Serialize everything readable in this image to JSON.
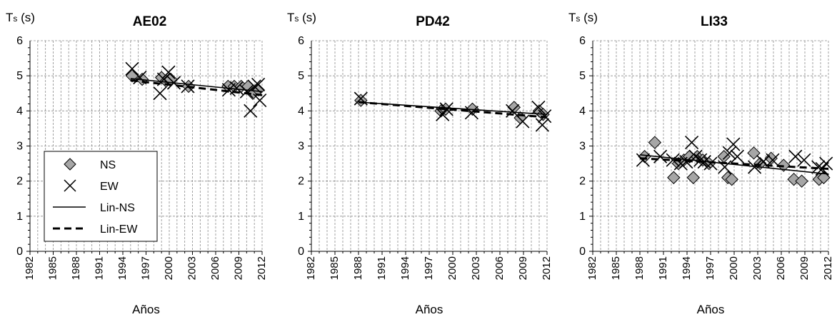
{
  "chart_data": [
    {
      "type": "scatter",
      "title": "AE02",
      "ylabel_main": "T",
      "ylabel_sub": "s",
      "ylabel_unit": " (s)",
      "xlabel": "Años",
      "xlim": [
        1982,
        2012
      ],
      "ylim": [
        0,
        6
      ],
      "x_ticks": [
        "1982",
        "1985",
        "1988",
        "1991",
        "1994",
        "1997",
        "2000",
        "2003",
        "2006",
        "2009",
        "2012"
      ],
      "y_ticks": [
        "0",
        "1",
        "2",
        "3",
        "4",
        "5",
        "6"
      ],
      "grid": true,
      "legend": {
        "placement": "bottom-left",
        "entries": [
          {
            "label": "NS",
            "marker": "diamond"
          },
          {
            "label": "EW",
            "marker": "x"
          },
          {
            "label": "Lin-NS",
            "marker": "solid-line"
          },
          {
            "label": "Lin-EW",
            "marker": "dashed-line"
          }
        ]
      },
      "series": [
        {
          "name": "NS",
          "marker": "diamond",
          "x": [
            1995.2,
            1996.5,
            1999.0,
            1999.6,
            2000.2,
            2002.5,
            2007.6,
            2008.4,
            2009.3,
            2010.2,
            2010.8,
            2011.5
          ],
          "y": [
            5.0,
            4.9,
            4.95,
            4.85,
            4.9,
            4.7,
            4.7,
            4.7,
            4.7,
            4.7,
            4.5,
            4.6
          ]
        },
        {
          "name": "EW",
          "marker": "x",
          "x": [
            1995.2,
            1996.2,
            1998.8,
            1999.3,
            1999.9,
            2000.6,
            2002.4,
            2007.7,
            2008.7,
            2010.0,
            2010.5,
            2011.0,
            2011.5,
            2011.7
          ],
          "y": [
            5.2,
            4.95,
            4.5,
            4.9,
            5.1,
            4.8,
            4.7,
            4.6,
            4.65,
            4.55,
            4.0,
            4.7,
            4.75,
            4.3
          ]
        },
        {
          "name": "Lin-NS",
          "type": "line",
          "style": "solid",
          "x": [
            1995,
            2012
          ],
          "y": [
            4.92,
            4.55
          ]
        },
        {
          "name": "Lin-EW",
          "type": "line",
          "style": "dashed",
          "x": [
            1995,
            2012
          ],
          "y": [
            4.87,
            4.45
          ]
        }
      ]
    },
    {
      "type": "scatter",
      "title": "PD42",
      "ylabel_main": "T",
      "ylabel_sub": "s",
      "ylabel_unit": " (s)",
      "xlabel": "Años",
      "xlim": [
        1982,
        2012
      ],
      "ylim": [
        0,
        6
      ],
      "x_ticks": [
        "1982",
        "1985",
        "1988",
        "1991",
        "1994",
        "1997",
        "2000",
        "2003",
        "2006",
        "2009",
        "2012"
      ],
      "y_ticks": [
        "0",
        "1",
        "2",
        "3",
        "4",
        "5",
        "6"
      ],
      "grid": true,
      "series": [
        {
          "name": "NS",
          "marker": "diamond",
          "x": [
            1988.3,
            1998.5,
            1999.1,
            2002.5,
            2007.8,
            2008.6,
            2011.0,
            2011.5
          ],
          "y": [
            4.3,
            4.0,
            4.05,
            4.05,
            4.1,
            3.8,
            4.0,
            3.9
          ]
        },
        {
          "name": "EW",
          "marker": "x",
          "x": [
            1988.3,
            1998.7,
            1999.2,
            2002.4,
            2007.6,
            2008.9,
            2010.9,
            2011.4,
            2011.7
          ],
          "y": [
            4.35,
            3.9,
            4.05,
            3.95,
            4.0,
            3.7,
            4.1,
            3.6,
            3.85
          ]
        },
        {
          "name": "Lin-NS",
          "type": "line",
          "style": "solid",
          "x": [
            1988,
            2012
          ],
          "y": [
            4.25,
            3.9
          ]
        },
        {
          "name": "Lin-EW",
          "type": "line",
          "style": "dashed",
          "x": [
            1988,
            2012
          ],
          "y": [
            4.25,
            3.82
          ]
        }
      ]
    },
    {
      "type": "scatter",
      "title": "LI33",
      "ylabel_main": "T",
      "ylabel_sub": "s",
      "ylabel_unit": " (s)",
      "xlabel": "Años",
      "xlim": [
        1982,
        2012
      ],
      "ylim": [
        0,
        6
      ],
      "x_ticks": [
        "1982",
        "1985",
        "1988",
        "1991",
        "1994",
        "1997",
        "2000",
        "2003",
        "2006",
        "2009",
        "2012"
      ],
      "y_ticks": [
        "0",
        "1",
        "2",
        "3",
        "4",
        "5",
        "6"
      ],
      "grid": true,
      "series": [
        {
          "name": "NS",
          "marker": "diamond",
          "x": [
            1988.6,
            1989.9,
            1992.3,
            1992.9,
            1993.6,
            1994.3,
            1994.8,
            1995.3,
            1996.0,
            1996.8,
            1998.7,
            1999.2,
            1999.7,
            2002.5,
            2003.3,
            2004.7,
            2006.3,
            2007.6,
            2008.6,
            2010.8,
            2011.4
          ],
          "y": [
            2.7,
            3.1,
            2.1,
            2.5,
            2.6,
            2.7,
            2.1,
            2.7,
            2.6,
            2.5,
            2.7,
            2.1,
            2.05,
            2.8,
            2.5,
            2.65,
            2.45,
            2.05,
            2.0,
            2.05,
            2.1
          ]
        },
        {
          "name": "EW",
          "marker": "x",
          "x": [
            1988.4,
            1990.6,
            1992.2,
            1993.2,
            1993.9,
            1994.6,
            1995.1,
            1995.7,
            1996.2,
            1997.0,
            1998.8,
            1999.4,
            1999.9,
            2000.4,
            2002.6,
            2003.7,
            2004.9,
            2007.8,
            2008.9,
            2010.7,
            2011.2,
            2011.7
          ],
          "y": [
            2.6,
            2.7,
            2.6,
            2.5,
            2.55,
            3.1,
            2.7,
            2.6,
            2.55,
            2.5,
            2.4,
            2.8,
            3.05,
            2.7,
            2.4,
            2.55,
            2.6,
            2.7,
            2.6,
            2.4,
            2.35,
            2.5
          ]
        },
        {
          "name": "Lin-NS",
          "type": "line",
          "style": "solid",
          "x": [
            1988,
            2012
          ],
          "y": [
            2.75,
            2.2
          ]
        },
        {
          "name": "Lin-EW",
          "type": "line",
          "style": "dashed",
          "x": [
            1988,
            2012
          ],
          "y": [
            2.65,
            2.35
          ]
        }
      ]
    }
  ]
}
